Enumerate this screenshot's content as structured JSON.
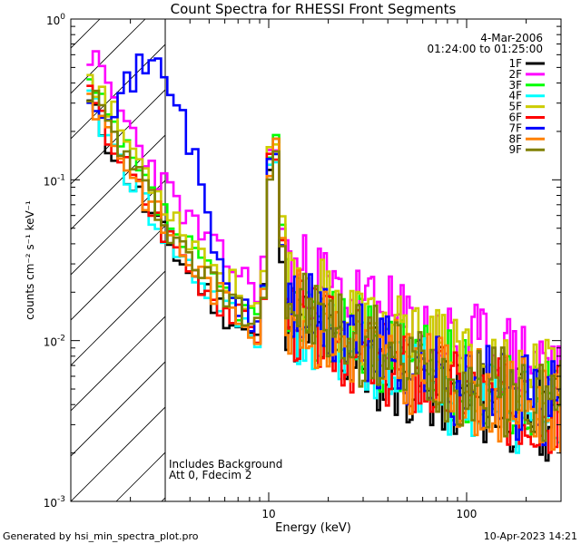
{
  "chart_data": {
    "type": "line",
    "title": "Count Spectra for RHESSI Front Segments",
    "xlabel": "Energy (keV)",
    "ylabel": "counts cm⁻² s⁻¹ keV⁻¹",
    "xscale": "log",
    "yscale": "log",
    "xlim": [
      1.0,
      300.0
    ],
    "ylim": [
      0.001,
      1.0
    ],
    "x_ticks": [
      {
        "value": 10,
        "label": "10"
      },
      {
        "value": 100,
        "label": "100"
      }
    ],
    "y_ticks": [
      {
        "value": 1,
        "base": "10",
        "exp": "0"
      },
      {
        "value": 0.1,
        "base": "10",
        "exp": "-1"
      },
      {
        "value": 0.01,
        "base": "10",
        "exp": "-2"
      },
      {
        "value": 0.001,
        "base": "10",
        "exp": "-3"
      }
    ],
    "legend_position": "top-right",
    "date": "4-Mar-2006",
    "time_range": "01:24:00 to 01:25:00",
    "shaded_region_kev": [
      1.0,
      3.0
    ],
    "annotations": [
      "Includes Background",
      "Att 0, Fdecim 2"
    ],
    "series": [
      {
        "name": "1F",
        "color": "#000000",
        "offset": 0.9,
        "seed": 11
      },
      {
        "name": "2F",
        "color": "#ff00ff",
        "offset": 1.9,
        "seed": 23
      },
      {
        "name": "3F",
        "color": "#00ff00",
        "offset": 1.2,
        "seed": 37
      },
      {
        "name": "4F",
        "color": "#00ffff",
        "offset": 0.95,
        "seed": 41
      },
      {
        "name": "5F",
        "color": "#cccc00",
        "offset": 1.5,
        "seed": 53
      },
      {
        "name": "6F",
        "color": "#ff0000",
        "offset": 1.0,
        "seed": 67
      },
      {
        "name": "7F",
        "color": "#0000ff",
        "offset": 1.1,
        "seed": 71
      },
      {
        "name": "8F",
        "color": "#ff8000",
        "offset": 1.05,
        "seed": 83
      },
      {
        "name": "9F",
        "color": "#808000",
        "offset": 1.15,
        "seed": 97
      }
    ]
  },
  "footer": {
    "left": "Generated by hsi_min_spectra_plot.pro",
    "right": "10-Apr-2023 14:21"
  }
}
